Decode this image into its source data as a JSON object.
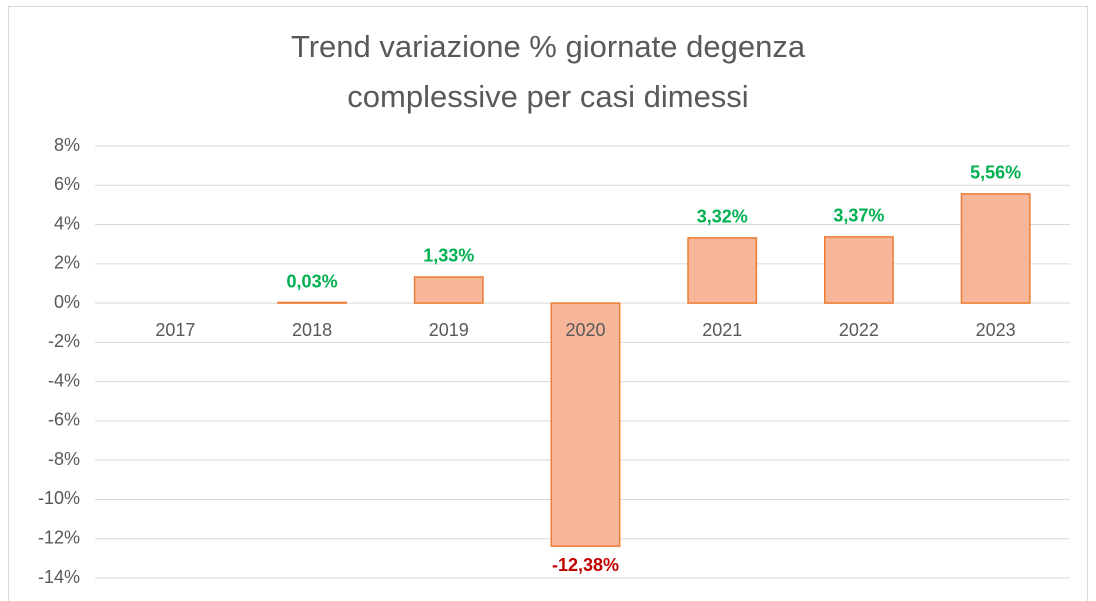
{
  "chart_data": {
    "type": "bar",
    "title": "Trend variazione % giornate degenza complessive per casi dimessi",
    "categories": [
      "2017",
      "2018",
      "2019",
      "2020",
      "2021",
      "2022",
      "2023"
    ],
    "values": [
      null,
      0.03,
      1.33,
      -12.38,
      3.32,
      3.37,
      5.56
    ],
    "value_labels": [
      null,
      "0,03%",
      "1,33%",
      "-12,38%",
      "3,32%",
      "3,37%",
      "5,56%"
    ],
    "color": "#f7b69a",
    "edge_color": "#ed7d31",
    "positive_label_color": "#00b050",
    "negative_label_color": "#c00000",
    "ylim": [
      -14,
      8
    ],
    "yticks": [
      {
        "value": 8,
        "label": "8%"
      },
      {
        "value": 6,
        "label": "6%"
      },
      {
        "value": 4,
        "label": "4%"
      },
      {
        "value": 2,
        "label": "2%"
      },
      {
        "value": 0,
        "label": "0%"
      },
      {
        "value": -2,
        "label": "-2%"
      },
      {
        "value": -4,
        "label": "-4%"
      },
      {
        "value": -6,
        "label": "-6%"
      },
      {
        "value": -8,
        "label": "-8%"
      },
      {
        "value": -10,
        "label": "-10%"
      },
      {
        "value": -12,
        "label": "-12%"
      },
      {
        "value": -14,
        "label": "-14%"
      }
    ],
    "grid": true
  }
}
